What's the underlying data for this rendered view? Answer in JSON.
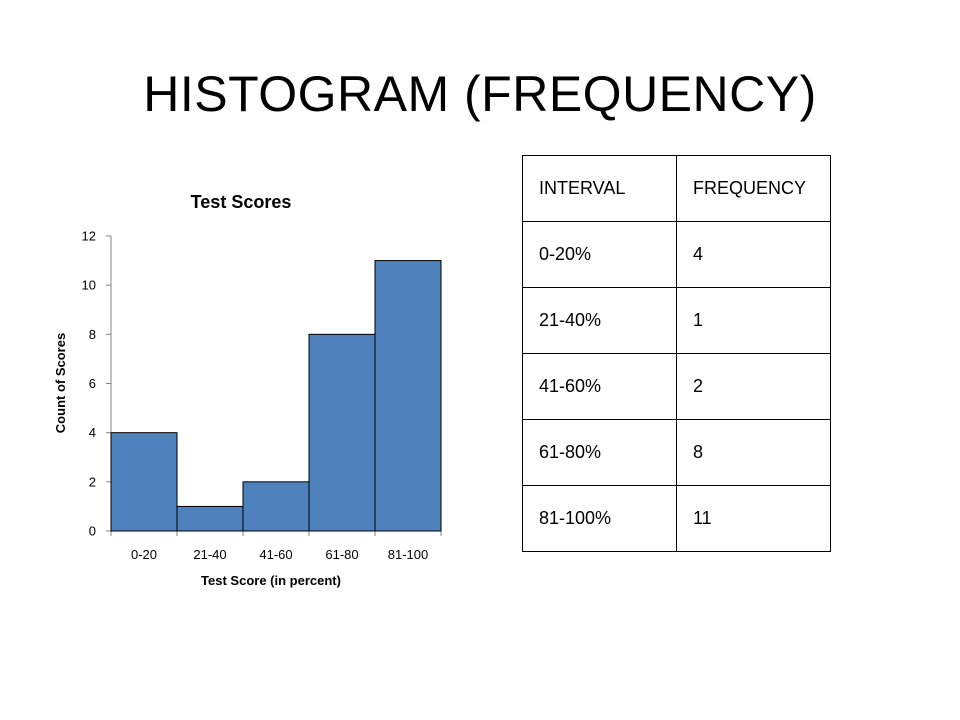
{
  "slide": {
    "title": "HISTOGRAM (FREQUENCY)"
  },
  "chart_data": {
    "type": "bar",
    "title": "Test Scores",
    "xlabel": "Test Score (in percent)",
    "ylabel": "Count of Scores",
    "categories": [
      "0-20",
      "21-40",
      "41-60",
      "61-80",
      "81-100"
    ],
    "values": [
      4,
      1,
      2,
      8,
      11
    ],
    "ylim": [
      0,
      12
    ],
    "yticks": [
      "0",
      "2",
      "4",
      "6",
      "8",
      "10",
      "12"
    ],
    "bar_color": "#4f81bd",
    "bar_edge_color": "#000000",
    "grid": false,
    "legend": "none"
  },
  "table": {
    "headers": [
      "INTERVAL",
      "FREQUENCY"
    ],
    "rows": [
      [
        "0-20%",
        "4"
      ],
      [
        "21-40%",
        "1"
      ],
      [
        "41-60%",
        "2"
      ],
      [
        "61-80%",
        "8"
      ],
      [
        "81-100%",
        "11"
      ]
    ]
  }
}
